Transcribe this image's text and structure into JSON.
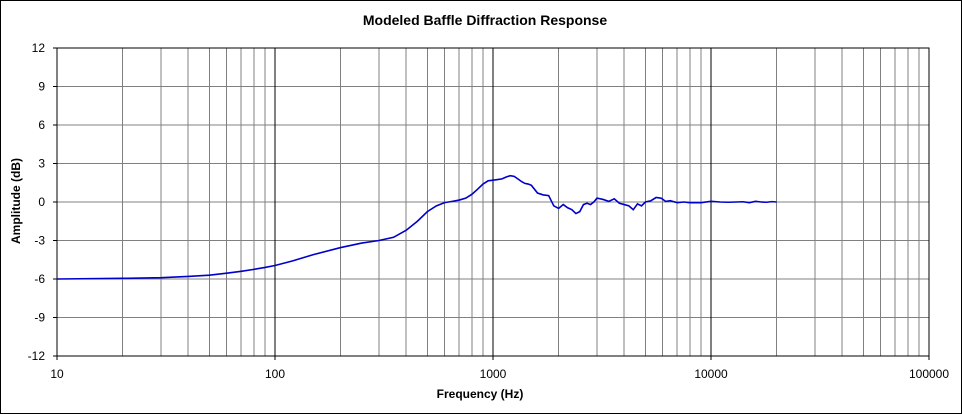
{
  "chart_data": {
    "type": "line",
    "title": "Modeled Baffle Diffraction Response",
    "xlabel": "Frequency (Hz)",
    "ylabel": "Amplitude (dB)",
    "xscale": "log",
    "xlim": [
      10,
      100000
    ],
    "ylim": [
      -12,
      12
    ],
    "x_tick_labels": [
      "10",
      "100",
      "1000",
      "10000",
      "100000"
    ],
    "x_ticks": [
      10,
      100,
      1000,
      10000,
      100000
    ],
    "y_ticks": [
      12,
      9,
      6,
      3,
      0,
      -3,
      -6,
      -9,
      -12
    ],
    "grid": true,
    "legend": "none",
    "colors": {
      "series": "#0000cc",
      "grid": "#808080",
      "major_grid": "#000000"
    },
    "series": [
      {
        "x": [
          10,
          20,
          30,
          40,
          50,
          60,
          70,
          80,
          90,
          100,
          120,
          150,
          200,
          250,
          300,
          350,
          400,
          450,
          500,
          550,
          600,
          650,
          700,
          750,
          800,
          850,
          900,
          950,
          1000,
          1050,
          1100,
          1150,
          1200,
          1250,
          1300,
          1350,
          1400,
          1450,
          1500,
          1600,
          1700,
          1800,
          1900,
          2000,
          2100,
          2200,
          2300,
          2400,
          2500,
          2600,
          2700,
          2800,
          2900,
          3000,
          3200,
          3400,
          3600,
          3800,
          4000,
          4200,
          4400,
          4600,
          4800,
          5000,
          5300,
          5600,
          5900,
          6200,
          6500,
          7000,
          7500,
          8000,
          9000,
          10000,
          11000,
          12000,
          13000,
          14000,
          15000,
          16000,
          17000,
          18000,
          19000,
          20000
        ],
        "y": [
          -6.0,
          -5.95,
          -5.9,
          -5.8,
          -5.7,
          -5.55,
          -5.4,
          -5.25,
          -5.1,
          -4.95,
          -4.6,
          -4.1,
          -3.55,
          -3.2,
          -3.0,
          -2.75,
          -2.2,
          -1.5,
          -0.75,
          -0.3,
          -0.05,
          0.05,
          0.15,
          0.3,
          0.6,
          1.0,
          1.4,
          1.65,
          1.7,
          1.75,
          1.8,
          1.95,
          2.05,
          2.0,
          1.8,
          1.6,
          1.45,
          1.4,
          1.3,
          0.7,
          0.55,
          0.5,
          -0.3,
          -0.5,
          -0.2,
          -0.45,
          -0.6,
          -0.9,
          -0.75,
          -0.2,
          -0.1,
          -0.2,
          0.0,
          0.3,
          0.2,
          0.05,
          0.25,
          -0.1,
          -0.2,
          -0.3,
          -0.6,
          -0.15,
          -0.3,
          0.0,
          0.1,
          0.35,
          0.3,
          0.05,
          0.1,
          -0.05,
          0.0,
          -0.05,
          -0.05,
          0.05,
          0.0,
          -0.02,
          0.0,
          0.02,
          -0.05,
          0.05,
          0.0,
          -0.02,
          0.03,
          0.0
        ]
      }
    ]
  }
}
